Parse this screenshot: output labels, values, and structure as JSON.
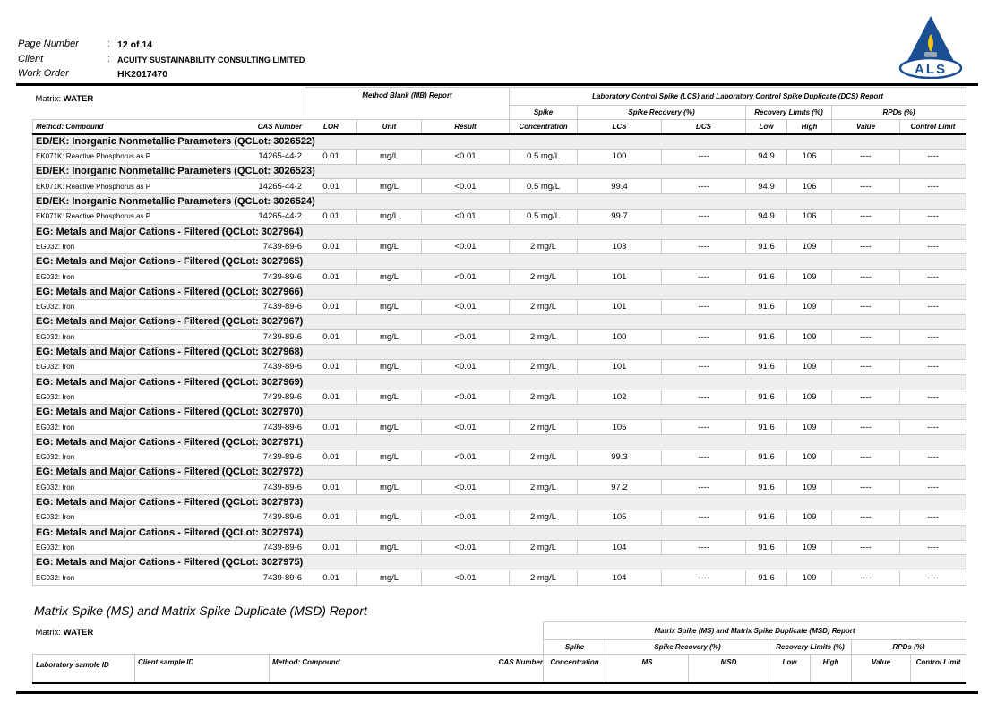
{
  "header": {
    "page_number_label": "Page Number",
    "page_number": "12 of 14",
    "client_label": "Client",
    "client": "ACUITY SUSTAINABILITY CONSULTING LIMITED",
    "work_order_label": "Work Order",
    "work_order": "HK2017470",
    "logo_text": "ALS",
    "logo_colors": {
      "triangle": "#1b4f93",
      "flame": "#f5c518"
    }
  },
  "lcs": {
    "matrix_label": "Matrix:",
    "matrix_value": "WATER",
    "mb_title": "Method Blank (MB) Report",
    "lcs_title": "Laboratory Control Spike (LCS) and Laboratory Control Spike Duplicate (DCS) Report",
    "h_spike": "Spike",
    "h_spike_recovery": "Spike Recovery (%)",
    "h_recovery_limits": "Recovery Limits (%)",
    "h_rpds": "RPDs (%)",
    "columns": [
      "Method: Compound",
      "CAS Number",
      "LOR",
      "Unit",
      "Result",
      "Concentration",
      "LCS",
      "DCS",
      "Low",
      "High",
      "Value",
      "Control Limit"
    ],
    "groups": [
      {
        "title": "ED/EK: Inorganic Nonmetallic Parameters  (QCLot: 3026522)",
        "row": [
          "EK071K: Reactive Phosphorus as P",
          "14265-44-2",
          "0.01",
          "mg/L",
          "<0.01",
          "0.5 mg/L",
          "100",
          "----",
          "94.9",
          "106",
          "----",
          "----"
        ]
      },
      {
        "title": "ED/EK: Inorganic Nonmetallic Parameters  (QCLot: 3026523)",
        "row": [
          "EK071K: Reactive Phosphorus as P",
          "14265-44-2",
          "0.01",
          "mg/L",
          "<0.01",
          "0.5 mg/L",
          "99.4",
          "----",
          "94.9",
          "106",
          "----",
          "----"
        ]
      },
      {
        "title": "ED/EK: Inorganic Nonmetallic Parameters  (QCLot: 3026524)",
        "row": [
          "EK071K: Reactive Phosphorus as P",
          "14265-44-2",
          "0.01",
          "mg/L",
          "<0.01",
          "0.5 mg/L",
          "99.7",
          "----",
          "94.9",
          "106",
          "----",
          "----"
        ]
      },
      {
        "title": "EG: Metals and Major Cations - Filtered  (QCLot: 3027964)",
        "row": [
          "EG032: Iron",
          "7439-89-6",
          "0.01",
          "mg/L",
          "<0.01",
          "2 mg/L",
          "103",
          "----",
          "91.6",
          "109",
          "----",
          "----"
        ]
      },
      {
        "title": "EG: Metals and Major Cations - Filtered  (QCLot: 3027965)",
        "row": [
          "EG032: Iron",
          "7439-89-6",
          "0.01",
          "mg/L",
          "<0.01",
          "2 mg/L",
          "101",
          "----",
          "91.6",
          "109",
          "----",
          "----"
        ]
      },
      {
        "title": "EG: Metals and Major Cations - Filtered  (QCLot: 3027966)",
        "row": [
          "EG032: Iron",
          "7439-89-6",
          "0.01",
          "mg/L",
          "<0.01",
          "2 mg/L",
          "101",
          "----",
          "91.6",
          "109",
          "----",
          "----"
        ]
      },
      {
        "title": "EG: Metals and Major Cations - Filtered  (QCLot: 3027967)",
        "row": [
          "EG032: Iron",
          "7439-89-6",
          "0.01",
          "mg/L",
          "<0.01",
          "2 mg/L",
          "100",
          "----",
          "91.6",
          "109",
          "----",
          "----"
        ]
      },
      {
        "title": "EG: Metals and Major Cations - Filtered  (QCLot: 3027968)",
        "row": [
          "EG032: Iron",
          "7439-89-6",
          "0.01",
          "mg/L",
          "<0.01",
          "2 mg/L",
          "101",
          "----",
          "91.6",
          "109",
          "----",
          "----"
        ]
      },
      {
        "title": "EG: Metals and Major Cations - Filtered  (QCLot: 3027969)",
        "row": [
          "EG032: Iron",
          "7439-89-6",
          "0.01",
          "mg/L",
          "<0.01",
          "2 mg/L",
          "102",
          "----",
          "91.6",
          "109",
          "----",
          "----"
        ]
      },
      {
        "title": "EG: Metals and Major Cations - Filtered  (QCLot: 3027970)",
        "row": [
          "EG032: Iron",
          "7439-89-6",
          "0.01",
          "mg/L",
          "<0.01",
          "2 mg/L",
          "105",
          "----",
          "91.6",
          "109",
          "----",
          "----"
        ]
      },
      {
        "title": "EG: Metals and Major Cations - Filtered  (QCLot: 3027971)",
        "row": [
          "EG032: Iron",
          "7439-89-6",
          "0.01",
          "mg/L",
          "<0.01",
          "2 mg/L",
          "99.3",
          "----",
          "91.6",
          "109",
          "----",
          "----"
        ]
      },
      {
        "title": "EG: Metals and Major Cations - Filtered  (QCLot: 3027972)",
        "row": [
          "EG032: Iron",
          "7439-89-6",
          "0.01",
          "mg/L",
          "<0.01",
          "2 mg/L",
          "97.2",
          "----",
          "91.6",
          "109",
          "----",
          "----"
        ]
      },
      {
        "title": "EG: Metals and Major Cations - Filtered  (QCLot: 3027973)",
        "row": [
          "EG032: Iron",
          "7439-89-6",
          "0.01",
          "mg/L",
          "<0.01",
          "2 mg/L",
          "105",
          "----",
          "91.6",
          "109",
          "----",
          "----"
        ]
      },
      {
        "title": "EG: Metals and Major Cations - Filtered  (QCLot: 3027974)",
        "row": [
          "EG032: Iron",
          "7439-89-6",
          "0.01",
          "mg/L",
          "<0.01",
          "2 mg/L",
          "104",
          "----",
          "91.6",
          "109",
          "----",
          "----"
        ]
      },
      {
        "title": "EG: Metals and Major Cations - Filtered  (QCLot: 3027975)",
        "row": [
          "EG032: Iron",
          "7439-89-6",
          "0.01",
          "mg/L",
          "<0.01",
          "2 mg/L",
          "104",
          "----",
          "91.6",
          "109",
          "----",
          "----"
        ]
      }
    ]
  },
  "ms": {
    "section_title": "Matrix Spike (MS) and Matrix Spike Duplicate (MSD) Report",
    "matrix_label": "Matrix:",
    "matrix_value": "WATER",
    "ms_title": "Matrix Spike (MS) and Matrix Spike Duplicate (MSD) Report",
    "h_spike": "Spike",
    "h_spike_recovery": "Spike Recovery (%)",
    "h_recovery_limits": "Recovery Limits (%)",
    "h_rpds": "RPDs (%)",
    "columns": [
      "Laboratory sample ID",
      "Client sample ID",
      "Method: Compound",
      "CAS Number",
      "Concentration",
      "MS",
      "MSD",
      "Low",
      "High",
      "Value",
      "Control Limit"
    ]
  }
}
